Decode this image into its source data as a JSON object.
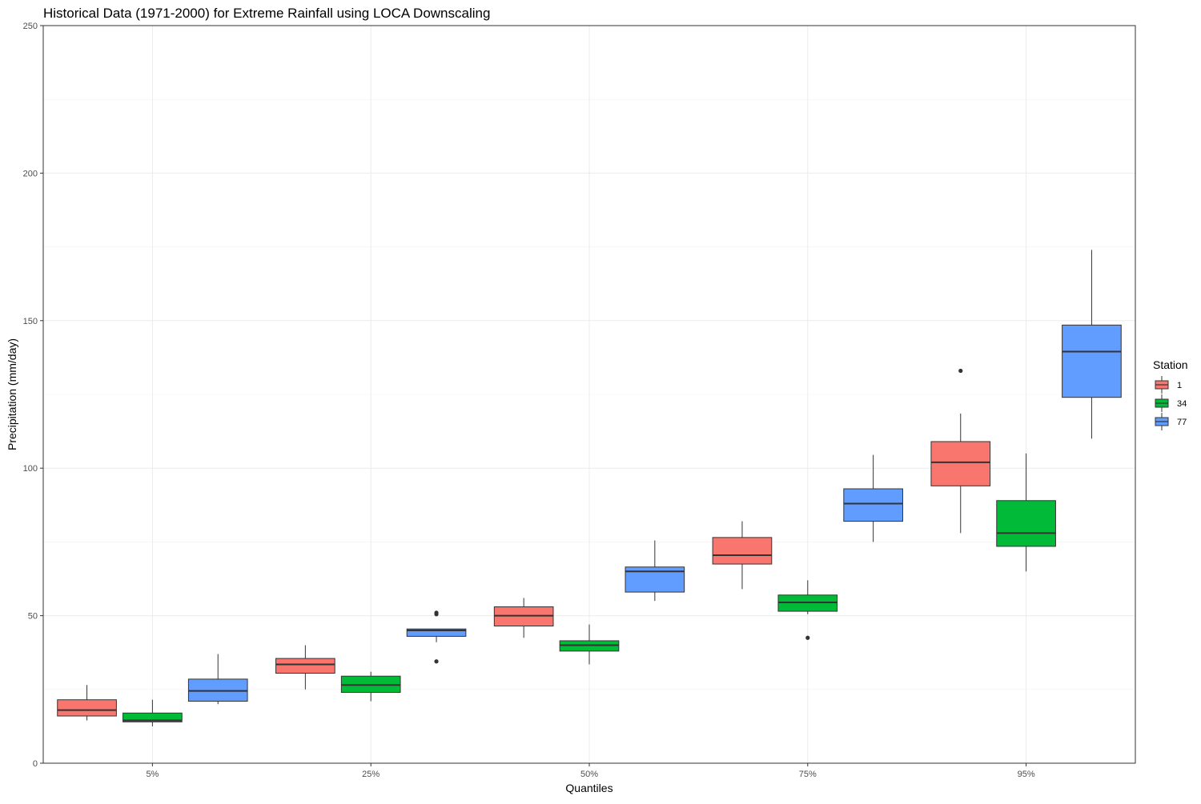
{
  "chart_data": {
    "type": "boxplot",
    "title": "Historical Data (1971-2000) for Extreme Rainfall using LOCA Downscaling",
    "xlabel": "Quantiles",
    "ylabel": "Precipitation (mm/day)",
    "ylim": [
      0,
      250
    ],
    "yticks": [
      0,
      50,
      100,
      150,
      200,
      250
    ],
    "categories": [
      "5%",
      "25%",
      "50%",
      "75%",
      "95%"
    ],
    "grid": true,
    "legend": {
      "title": "Station",
      "placement": "right"
    },
    "series": [
      {
        "name": "1",
        "color": "#F8766D",
        "boxes": [
          {
            "min": 14.5,
            "q1": 16,
            "median": 18,
            "q3": 21.5,
            "max": 26.5,
            "outliers": []
          },
          {
            "min": 25,
            "q1": 30.5,
            "median": 33.5,
            "q3": 35.5,
            "max": 40,
            "outliers": []
          },
          {
            "min": 42.5,
            "q1": 46.5,
            "median": 50,
            "q3": 53,
            "max": 56,
            "outliers": []
          },
          {
            "min": 59,
            "q1": 67.5,
            "median": 70.5,
            "q3": 76.5,
            "max": 82,
            "outliers": []
          },
          {
            "min": 78,
            "q1": 94,
            "median": 102,
            "q3": 109,
            "max": 118.5,
            "outliers": [
              133
            ]
          }
        ]
      },
      {
        "name": "34",
        "color": "#00BA38",
        "boxes": [
          {
            "min": 12.5,
            "q1": 14,
            "median": 14.5,
            "q3": 17,
            "max": 21.5,
            "outliers": []
          },
          {
            "min": 21,
            "q1": 24,
            "median": 26.5,
            "q3": 29.5,
            "max": 31,
            "outliers": []
          },
          {
            "min": 33.5,
            "q1": 38,
            "median": 40,
            "q3": 41.5,
            "max": 47,
            "outliers": []
          },
          {
            "min": 50.5,
            "q1": 51.5,
            "median": 54.5,
            "q3": 57,
            "max": 62,
            "outliers": [
              42.5
            ]
          },
          {
            "min": 65,
            "q1": 73.5,
            "median": 78,
            "q3": 89,
            "max": 105,
            "outliers": []
          }
        ]
      },
      {
        "name": "77",
        "color": "#619CFF",
        "boxes": [
          {
            "min": 20,
            "q1": 21,
            "median": 24.5,
            "q3": 28.5,
            "max": 37,
            "outliers": []
          },
          {
            "min": 41,
            "q1": 43,
            "median": 45,
            "q3": 45.5,
            "max": 45.5,
            "outliers": [
              50.5,
              51,
              34.5
            ]
          },
          {
            "min": 55,
            "q1": 58,
            "median": 65,
            "q3": 66.5,
            "max": 75.5,
            "outliers": []
          },
          {
            "min": 75,
            "q1": 82,
            "median": 88,
            "q3": 93,
            "max": 104.5,
            "outliers": []
          },
          {
            "min": 110,
            "q1": 124,
            "median": 139.5,
            "q3": 148.5,
            "max": 174,
            "outliers": []
          }
        ]
      }
    ]
  }
}
